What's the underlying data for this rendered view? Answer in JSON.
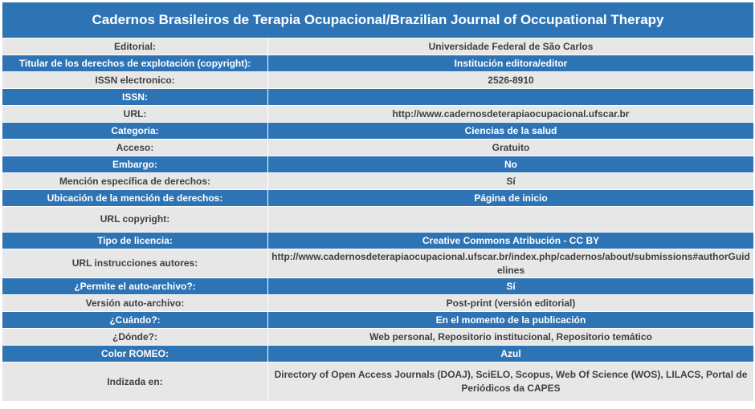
{
  "title": "Cadernos Brasileiros de Terapia Ocupacional/Brazilian Journal of Occupational Therapy",
  "rows": [
    {
      "label": "Editorial:",
      "value": "Universidade Federal de São Carlos"
    },
    {
      "label": "Titular de los derechos de explotación (copyright):",
      "value": "Institución editora/editor"
    },
    {
      "label": "ISSN electronico:",
      "value": "2526-8910"
    },
    {
      "label": "ISSN:",
      "value": ""
    },
    {
      "label": "URL:",
      "value": "http://www.cadernosdeterapiaocupacional.ufscar.br"
    },
    {
      "label": "Categoria:",
      "value": "Ciencias de la salud"
    },
    {
      "label": "Acceso:",
      "value": "Gratuito"
    },
    {
      "label": "Embargo:",
      "value": "No"
    },
    {
      "label": "Mención específica de derechos:",
      "value": "Sí"
    },
    {
      "label": "Ubicación de la mención de derechos:",
      "value": "Página de inicio"
    },
    {
      "label": "URL copyright:",
      "value": ""
    },
    {
      "label": "Tipo de licencia:",
      "value": "Creative Commons Atribución - CC BY"
    },
    {
      "label": "URL instrucciones autores:",
      "value": "http://www.cadernosdeterapiaocupacional.ufscar.br/index.php/cadernos/about/submissions#authorGuidelines"
    },
    {
      "label": "¿Permite el auto-archivo?:",
      "value": "Sí"
    },
    {
      "label": "Versión auto-archivo:",
      "value": "Post-print (versión editorial)"
    },
    {
      "label": "¿Cuándo?:",
      "value": "En el momento de la publicación"
    },
    {
      "label": "¿Dónde?:",
      "value": "Web personal, Repositorio institucional, Repositorio temático"
    },
    {
      "label": "Color ROMEO:",
      "value": "Azul"
    },
    {
      "label": "Indizada en:",
      "value": "Directory of Open Access Journals (DOAJ), SciELO, Scopus, Web Of Science (WOS), LILACS, Portal de Periódicos da CAPES"
    }
  ],
  "colors": {
    "header": "#2e74b5",
    "light_row": "#e7e7e7",
    "text_dark": "#404040",
    "text_light": "#ffffff"
  }
}
